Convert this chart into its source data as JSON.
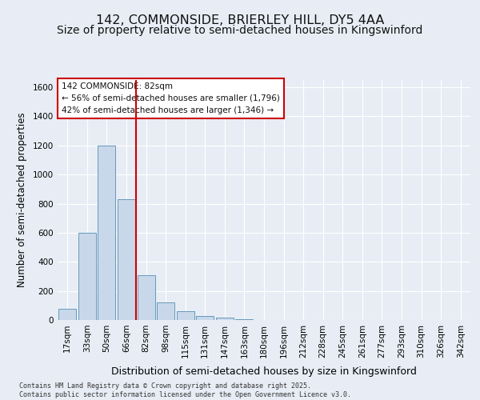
{
  "title_line1": "142, COMMONSIDE, BRIERLEY HILL, DY5 4AA",
  "title_line2": "Size of property relative to semi-detached houses in Kingswinford",
  "xlabel": "Distribution of semi-detached houses by size in Kingswinford",
  "ylabel": "Number of semi-detached properties",
  "categories": [
    "17sqm",
    "33sqm",
    "50sqm",
    "66sqm",
    "82sqm",
    "98sqm",
    "115sqm",
    "131sqm",
    "147sqm",
    "163sqm",
    "180sqm",
    "196sqm",
    "212sqm",
    "228sqm",
    "245sqm",
    "261sqm",
    "277sqm",
    "293sqm",
    "310sqm",
    "326sqm",
    "342sqm"
  ],
  "values": [
    75,
    600,
    1200,
    830,
    310,
    120,
    60,
    30,
    18,
    5,
    0,
    0,
    0,
    0,
    0,
    0,
    0,
    0,
    0,
    0,
    0
  ],
  "bar_color": "#c8d8ea",
  "bar_edge_color": "#6699bb",
  "vline_color": "#cc0000",
  "vline_x": 3.5,
  "annotation_title": "142 COMMONSIDE: 82sqm",
  "annotation_line1": "← 56% of semi-detached houses are smaller (1,796)",
  "annotation_line2": "42% of semi-detached houses are larger (1,346) →",
  "annotation_box_edgecolor": "#cc0000",
  "ylim_max": 1650,
  "yticks": [
    0,
    200,
    400,
    600,
    800,
    1000,
    1200,
    1400,
    1600
  ],
  "bg_color": "#e8edf5",
  "grid_color": "#ffffff",
  "footer_line1": "Contains HM Land Registry data © Crown copyright and database right 2025.",
  "footer_line2": "Contains public sector information licensed under the Open Government Licence v3.0.",
  "title_fs": 11.5,
  "subtitle_fs": 10,
  "tick_fs": 7.5,
  "ylabel_fs": 8.5,
  "xlabel_fs": 9,
  "ann_fs": 7.5
}
